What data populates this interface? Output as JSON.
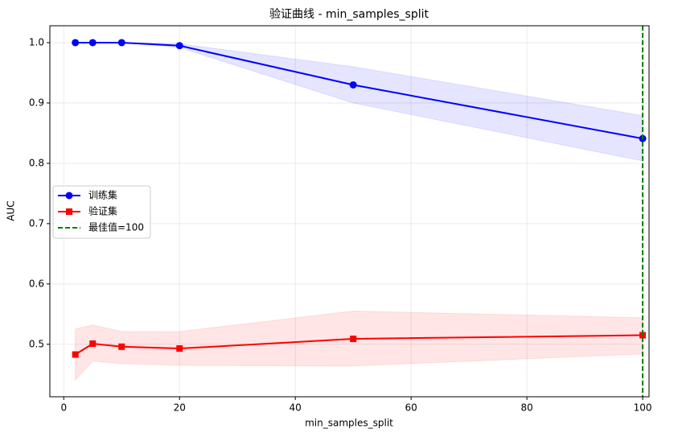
{
  "chart_data": {
    "type": "line",
    "title": "验证曲线 - min_samples_split",
    "x_label": "min_samples_split",
    "y_label": "AUC",
    "x": [
      2,
      5,
      10,
      20,
      50,
      100
    ],
    "series": [
      {
        "name": "训练集",
        "color": "#0000ff",
        "marker": "circle",
        "values": [
          1.0,
          1.0,
          1.0,
          0.995,
          0.93,
          0.841
        ],
        "band_upper": [
          1.0,
          1.0,
          1.0,
          0.998,
          0.96,
          0.879
        ],
        "band_lower": [
          1.0,
          1.0,
          1.0,
          0.992,
          0.9,
          0.804
        ]
      },
      {
        "name": "验证集",
        "color": "#ff0000",
        "marker": "square",
        "values": [
          0.483,
          0.501,
          0.496,
          0.493,
          0.509,
          0.515
        ],
        "band_upper": [
          0.525,
          0.532,
          0.521,
          0.521,
          0.555,
          0.544
        ],
        "band_lower": [
          0.441,
          0.472,
          0.468,
          0.465,
          0.464,
          0.484
        ]
      }
    ],
    "best": {
      "name": "最佳值=100",
      "x": 100,
      "color": "#008000"
    },
    "xlim": [
      -2.4,
      101.1
    ],
    "ylim": [
      0.413,
      1.028
    ],
    "xticks": [
      0,
      20,
      40,
      60,
      80,
      100
    ],
    "yticks": [
      0.5,
      0.6,
      0.7,
      0.8,
      0.9,
      {
        "value": 1,
        "label": "1.0"
      }
    ],
    "grid": true,
    "legend": "left"
  }
}
